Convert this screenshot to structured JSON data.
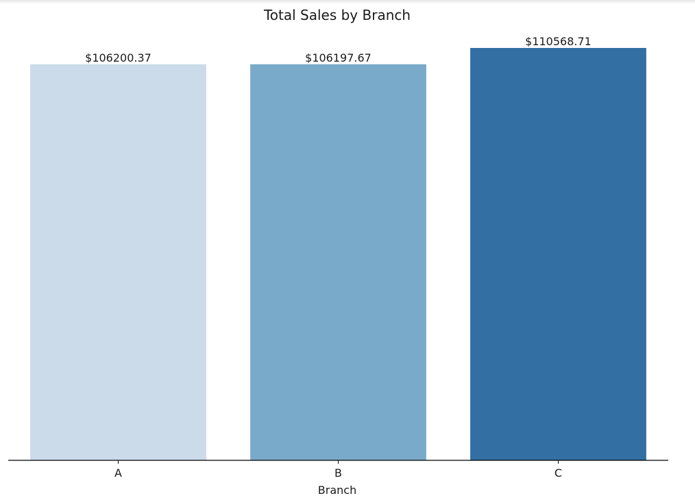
{
  "chart_data": {
    "type": "bar",
    "title": "Total Sales by Branch",
    "xlabel": "Branch",
    "ylabel": "",
    "categories": [
      "A",
      "B",
      "C"
    ],
    "values": [
      106200.37,
      106197.67,
      110568.71
    ],
    "value_labels": [
      "$106200.37",
      "$106197.67",
      "$110568.71"
    ],
    "colors": [
      "#cbdbea",
      "#7aaac9",
      "#336fa3"
    ],
    "ylim": [
      0,
      110568.71
    ],
    "grid": false,
    "legend": "none"
  }
}
